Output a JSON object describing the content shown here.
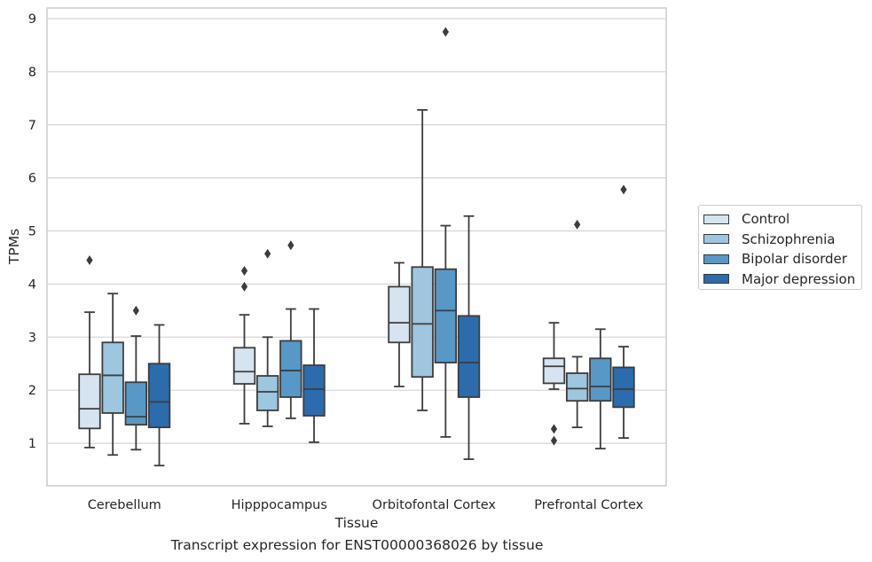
{
  "chart_data": {
    "type": "box",
    "xlabel": "Tissue",
    "ylabel": "TPMs",
    "caption": "Transcript expression for ENST00000368026 by tissue",
    "ylim": [
      0.2,
      9.2
    ],
    "yticks": [
      1,
      2,
      3,
      4,
      5,
      6,
      7,
      8,
      9
    ],
    "grid": true,
    "legend_position": "right",
    "categories": [
      "Cerebellum",
      "Hipppocampus",
      "Orbitofontal Cortex",
      "Prefrontal Cortex"
    ],
    "series": [
      {
        "name": "Control",
        "color": "#d6e4f1",
        "boxes": [
          {
            "whisker_low": 0.92,
            "q1": 1.28,
            "median": 1.65,
            "q3": 2.3,
            "whisker_high": 3.47,
            "outliers": [
              4.45
            ]
          },
          {
            "whisker_low": 1.37,
            "q1": 2.12,
            "median": 2.35,
            "q3": 2.8,
            "whisker_high": 3.42,
            "outliers": [
              3.95,
              4.25
            ]
          },
          {
            "whisker_low": 2.07,
            "q1": 2.9,
            "median": 3.27,
            "q3": 3.95,
            "whisker_high": 4.4,
            "outliers": []
          },
          {
            "whisker_low": 2.02,
            "q1": 2.13,
            "median": 2.45,
            "q3": 2.6,
            "whisker_high": 3.27,
            "outliers": [
              1.05,
              1.27
            ]
          }
        ]
      },
      {
        "name": "Schizophrenia",
        "color": "#9dc6df",
        "boxes": [
          {
            "whisker_low": 0.78,
            "q1": 1.57,
            "median": 2.28,
            "q3": 2.9,
            "whisker_high": 3.82,
            "outliers": []
          },
          {
            "whisker_low": 1.32,
            "q1": 1.62,
            "median": 1.97,
            "q3": 2.27,
            "whisker_high": 3.0,
            "outliers": [
              4.57
            ]
          },
          {
            "whisker_low": 1.62,
            "q1": 2.25,
            "median": 3.25,
            "q3": 4.32,
            "whisker_high": 7.28,
            "outliers": []
          },
          {
            "whisker_low": 1.3,
            "q1": 1.8,
            "median": 2.03,
            "q3": 2.32,
            "whisker_high": 2.63,
            "outliers": [
              5.12
            ]
          }
        ]
      },
      {
        "name": "Bipolar disorder",
        "color": "#5898c6",
        "boxes": [
          {
            "whisker_low": 0.88,
            "q1": 1.35,
            "median": 1.5,
            "q3": 2.15,
            "whisker_high": 3.02,
            "outliers": [
              3.5
            ]
          },
          {
            "whisker_low": 1.47,
            "q1": 1.87,
            "median": 2.37,
            "q3": 2.93,
            "whisker_high": 3.53,
            "outliers": [
              4.73
            ]
          },
          {
            "whisker_low": 1.12,
            "q1": 2.52,
            "median": 3.5,
            "q3": 4.28,
            "whisker_high": 5.1,
            "outliers": [
              8.75
            ]
          },
          {
            "whisker_low": 0.9,
            "q1": 1.8,
            "median": 2.07,
            "q3": 2.6,
            "whisker_high": 3.15,
            "outliers": []
          }
        ]
      },
      {
        "name": "Major depression",
        "color": "#2b6cac",
        "boxes": [
          {
            "whisker_low": 0.58,
            "q1": 1.3,
            "median": 1.78,
            "q3": 2.5,
            "whisker_high": 3.23,
            "outliers": []
          },
          {
            "whisker_low": 1.02,
            "q1": 1.52,
            "median": 2.02,
            "q3": 2.47,
            "whisker_high": 3.53,
            "outliers": []
          },
          {
            "whisker_low": 0.7,
            "q1": 1.87,
            "median": 2.52,
            "q3": 3.4,
            "whisker_high": 5.28,
            "outliers": []
          },
          {
            "whisker_low": 1.1,
            "q1": 1.68,
            "median": 2.02,
            "q3": 2.43,
            "whisker_high": 2.82,
            "outliers": [
              5.78
            ]
          }
        ]
      }
    ]
  }
}
